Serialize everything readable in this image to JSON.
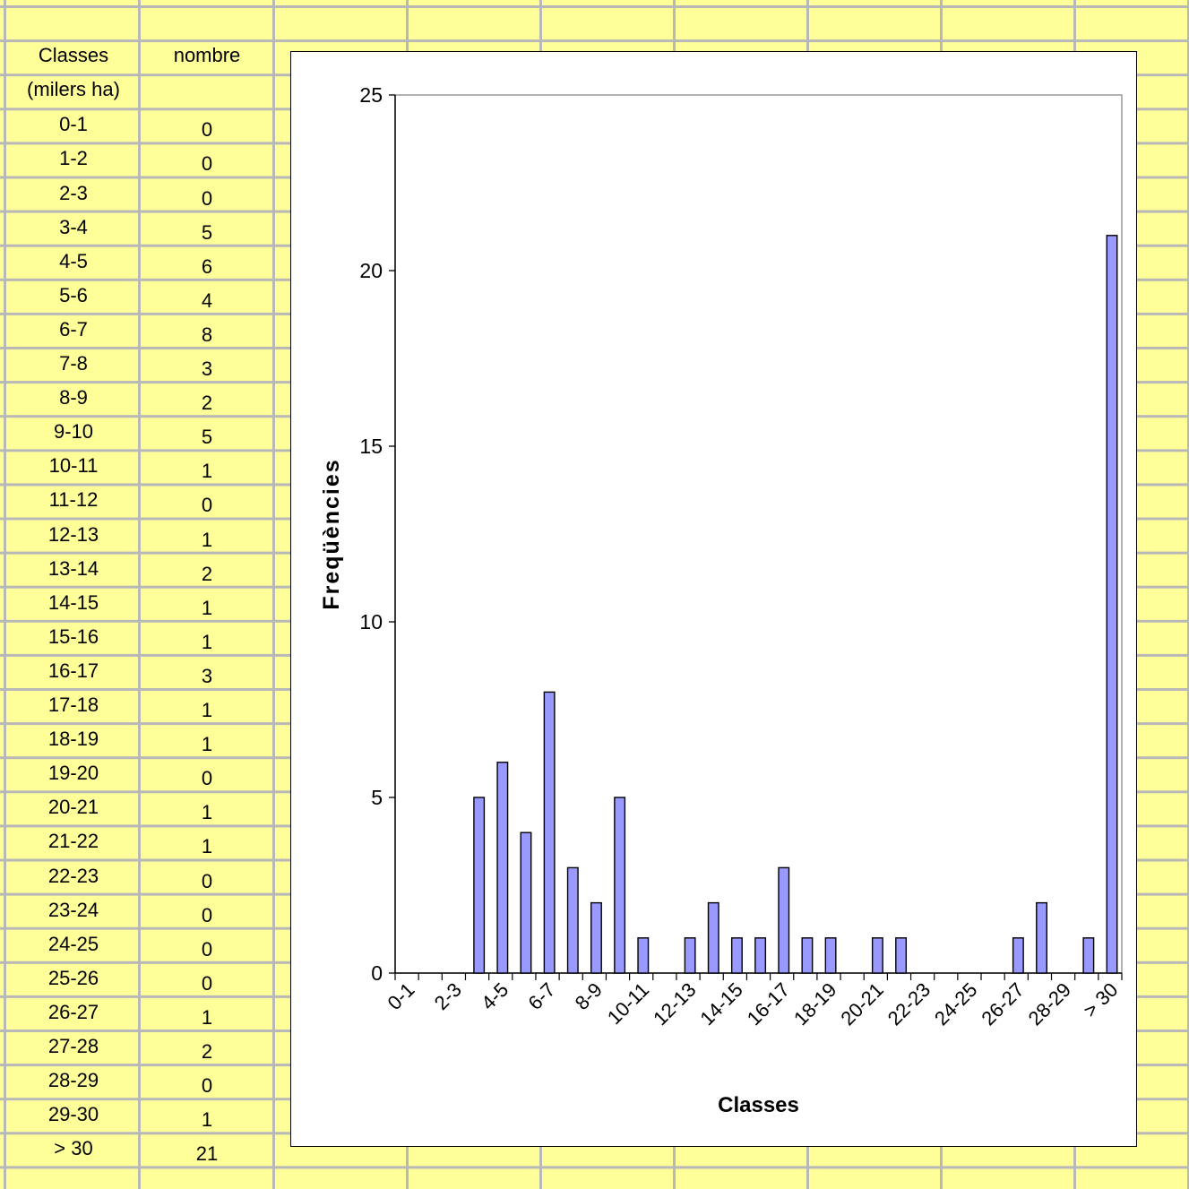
{
  "sheet": {
    "header_col1": "Classes",
    "header_col2": "nombre",
    "subheader_col1": "(milers ha)",
    "grid_color": "#b8b8b8",
    "cell_color": "#ffff99"
  },
  "table": {
    "rows": [
      {
        "classe": "0-1",
        "nombre": "0"
      },
      {
        "classe": "1-2",
        "nombre": "0"
      },
      {
        "classe": "2-3",
        "nombre": "0"
      },
      {
        "classe": "3-4",
        "nombre": "5"
      },
      {
        "classe": "4-5",
        "nombre": "6"
      },
      {
        "classe": "5-6",
        "nombre": "4"
      },
      {
        "classe": "6-7",
        "nombre": "8"
      },
      {
        "classe": "7-8",
        "nombre": "3"
      },
      {
        "classe": "8-9",
        "nombre": "2"
      },
      {
        "classe": "9-10",
        "nombre": "5"
      },
      {
        "classe": "10-11",
        "nombre": "1"
      },
      {
        "classe": "11-12",
        "nombre": "0"
      },
      {
        "classe": "12-13",
        "nombre": "1"
      },
      {
        "classe": "13-14",
        "nombre": "2"
      },
      {
        "classe": "14-15",
        "nombre": "1"
      },
      {
        "classe": "15-16",
        "nombre": "1"
      },
      {
        "classe": "16-17",
        "nombre": "3"
      },
      {
        "classe": "17-18",
        "nombre": "1"
      },
      {
        "classe": "18-19",
        "nombre": "1"
      },
      {
        "classe": "19-20",
        "nombre": "0"
      },
      {
        "classe": "20-21",
        "nombre": "1"
      },
      {
        "classe": "21-22",
        "nombre": "1"
      },
      {
        "classe": "22-23",
        "nombre": "0"
      },
      {
        "classe": "23-24",
        "nombre": "0"
      },
      {
        "classe": "24-25",
        "nombre": "0"
      },
      {
        "classe": "25-26",
        "nombre": "0"
      },
      {
        "classe": "26-27",
        "nombre": "1"
      },
      {
        "classe": "27-28",
        "nombre": "2"
      },
      {
        "classe": "28-29",
        "nombre": "0"
      },
      {
        "classe": "29-30",
        "nombre": "1"
      },
      {
        "classe": "> 30",
        "nombre": "21"
      }
    ]
  },
  "chart_data": {
    "type": "bar",
    "xlabel": "Classes",
    "ylabel": "Freqüències",
    "ylim": [
      0,
      25
    ],
    "yticks": [
      0,
      5,
      10,
      15,
      20,
      25
    ],
    "categories": [
      "0-1",
      "1-2",
      "2-3",
      "3-4",
      "4-5",
      "5-6",
      "6-7",
      "7-8",
      "8-9",
      "9-10",
      "10-11",
      "11-12",
      "12-13",
      "13-14",
      "14-15",
      "15-16",
      "16-17",
      "17-18",
      "18-19",
      "19-20",
      "20-21",
      "21-22",
      "22-23",
      "23-24",
      "24-25",
      "25-26",
      "26-27",
      "27-28",
      "28-29",
      "29-30",
      "> 30"
    ],
    "visible_tick_labels": [
      "0-1",
      "2-3",
      "4-5",
      "6-7",
      "8-9",
      "10-11",
      "12-13",
      "14-15",
      "16-17",
      "18-19",
      "20-21",
      "22-23",
      "24-25",
      "26-27",
      "28-29",
      "> 30"
    ],
    "values": [
      0,
      0,
      0,
      5,
      6,
      4,
      8,
      3,
      2,
      5,
      1,
      0,
      1,
      2,
      1,
      1,
      3,
      1,
      1,
      0,
      1,
      1,
      0,
      0,
      0,
      0,
      1,
      2,
      0,
      1,
      21
    ],
    "bar_color": "#9999ff",
    "bar_outline": "#000000",
    "grid": false,
    "legend": "none"
  }
}
